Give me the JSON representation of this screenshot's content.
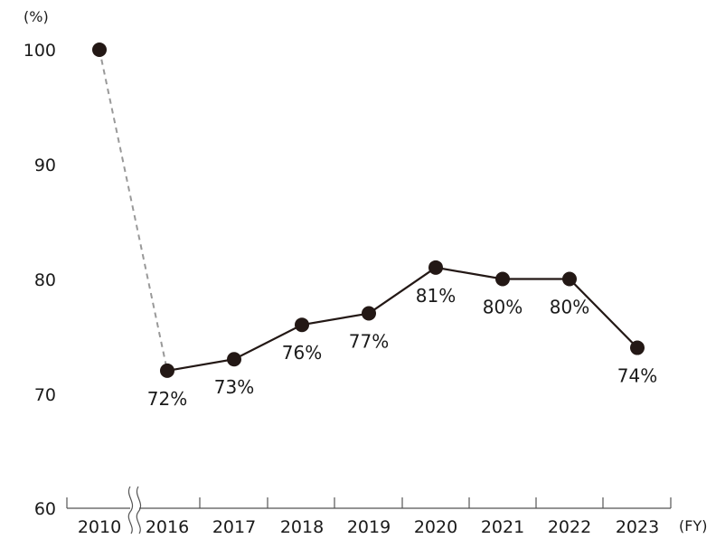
{
  "chart_data": {
    "type": "line",
    "y_unit": "(%)",
    "x_unit": "(FY)",
    "ylim": [
      60,
      100
    ],
    "yticks": [
      "100",
      "90",
      "80",
      "70",
      "60"
    ],
    "categories": [
      "2010",
      "2016",
      "2017",
      "2018",
      "2019",
      "2020",
      "2021",
      "2022",
      "2023"
    ],
    "values": [
      100,
      72,
      73,
      76,
      77,
      81,
      80,
      80,
      74
    ],
    "data_labels": [
      "",
      "72%",
      "73%",
      "76%",
      "77%",
      "81%",
      "80%",
      "80%",
      "74%"
    ],
    "axis_break_between": [
      "2010",
      "2016"
    ],
    "dashed_segment": [
      "2010",
      "2016"
    ],
    "grid": false,
    "colors": {
      "line": "#231815",
      "marker": "#231815",
      "dashed": "#999999",
      "axis": "#555555"
    }
  }
}
